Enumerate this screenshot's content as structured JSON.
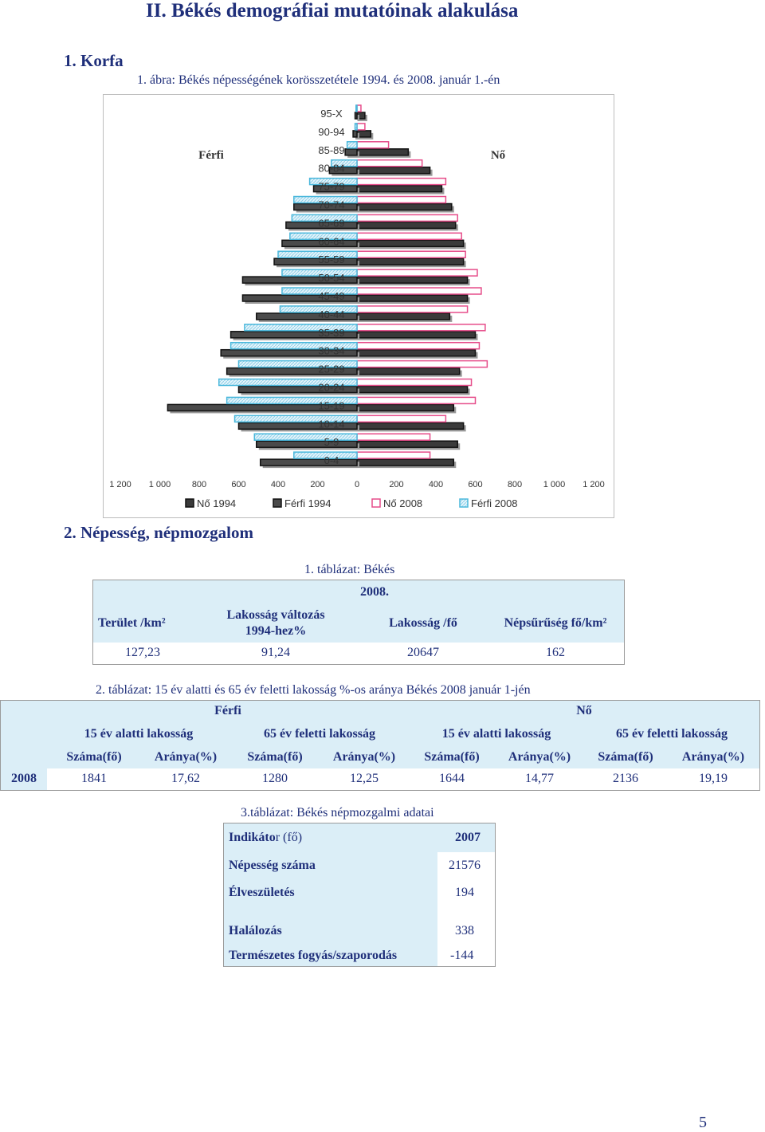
{
  "title": "II.  Békés demográfiai mutatóinak alakulása",
  "section1": "1.  Korfa",
  "figure_caption": "1. ábra: Békés  népességének korösszetétele 1994. és 2008. január 1.-én",
  "section2": "2.  Népesség, népmozgalom",
  "chart_data": {
    "type": "bar",
    "orientation": "horizontal population pyramid",
    "label_left": "Férfi",
    "label_right": "Nő",
    "categories": [
      "95-X",
      "90-94",
      "85-89",
      "80-84",
      "75-79",
      "70-74",
      "65-69",
      "60-64",
      "55-59",
      "50-54",
      "45-49",
      "40-44",
      "35-39",
      "30-34",
      "25-29",
      "20-24",
      "15-19",
      "10-14",
      "5-9",
      "0-4"
    ],
    "xlim": [
      -1200,
      1200
    ],
    "xticks": [
      -1200,
      -1000,
      -800,
      -600,
      -400,
      -200,
      0,
      200,
      400,
      600,
      800,
      1000,
      1200
    ],
    "xtick_labels": [
      "1 200",
      "1 000",
      "800",
      "600",
      "400",
      "200",
      "0",
      "200",
      "400",
      "600",
      "800",
      "1 000",
      "1 200"
    ],
    "series": [
      {
        "name": "Nő 1994",
        "side": "right",
        "values": [
          40,
          70,
          260,
          370,
          430,
          480,
          500,
          540,
          540,
          560,
          560,
          470,
          600,
          600,
          520,
          560,
          490,
          540,
          510,
          490
        ]
      },
      {
        "name": "Férfi 1994",
        "side": "left",
        "values": [
          10,
          20,
          60,
          140,
          220,
          320,
          360,
          380,
          420,
          580,
          580,
          510,
          640,
          690,
          660,
          600,
          960,
          600,
          510,
          490
        ]
      },
      {
        "name": "Nő 2008",
        "side": "right",
        "values": [
          20,
          40,
          160,
          330,
          450,
          450,
          510,
          530,
          550,
          610,
          630,
          560,
          650,
          620,
          660,
          580,
          600,
          450,
          370,
          370
        ]
      },
      {
        "name": "Férfi 2008",
        "side": "left",
        "values": [
          5,
          10,
          50,
          130,
          240,
          320,
          330,
          340,
          400,
          380,
          380,
          390,
          570,
          640,
          600,
          700,
          660,
          620,
          520,
          320
        ]
      }
    ],
    "legend": [
      "Nő 1994",
      "Férfi 1994",
      "Nő 2008",
      "Férfi 2008"
    ],
    "legend_position": "bottom",
    "colors": {
      "no1994": "#3a3a3a",
      "ferfi1994": "#4a4a4a",
      "no2008": "#e64d8a",
      "ferfi2008": "#4bb8dc"
    }
  },
  "table1": {
    "caption": "1. táblázat: Békés",
    "year": "2008.",
    "headers": [
      "Terület /km²",
      "Lakosság változás",
      "1994-hez%",
      "Lakosság /fő",
      "Népsűrűség fő/km²"
    ],
    "values": [
      "127,23",
      "91,24",
      "20647",
      "162"
    ]
  },
  "table2": {
    "caption": "2. táblázat: 15 év alatti és 65 év feletti lakosság %-os aránya Békés 2008 január 1-jén",
    "group_headers": [
      "Férfi",
      "Nő"
    ],
    "sub_headers": [
      "15 év alatti lakosság",
      "65 év feletti lakosság",
      "15 év alatti lakosság",
      "65 év feletti lakosság"
    ],
    "col_headers": [
      "Száma(fő)",
      "Aránya(%)",
      "Száma(fő)",
      "Aránya(%)",
      "Száma(fő)",
      "Aránya(%)",
      "Száma(fő)",
      "Aránya(%)"
    ],
    "row_label": "2008",
    "values": [
      "1841",
      "17,62",
      "1280",
      "12,25",
      "1644",
      "14,77",
      "2136",
      "19,19"
    ]
  },
  "table3": {
    "caption": "3.táblázat: Békés  népmozgalmi adatai",
    "header_bold": "Indikáto",
    "header_rest": "r (fő)",
    "year": "2007",
    "rows": [
      {
        "label": "Népesség száma",
        "value": "21576"
      },
      {
        "label": "Élveszületés",
        "value": "194"
      },
      {
        "label": "Halálozás",
        "value": "338"
      },
      {
        "label": "Természetes fogyás/szaporodás",
        "value": "-144"
      }
    ]
  },
  "page_number": "5"
}
